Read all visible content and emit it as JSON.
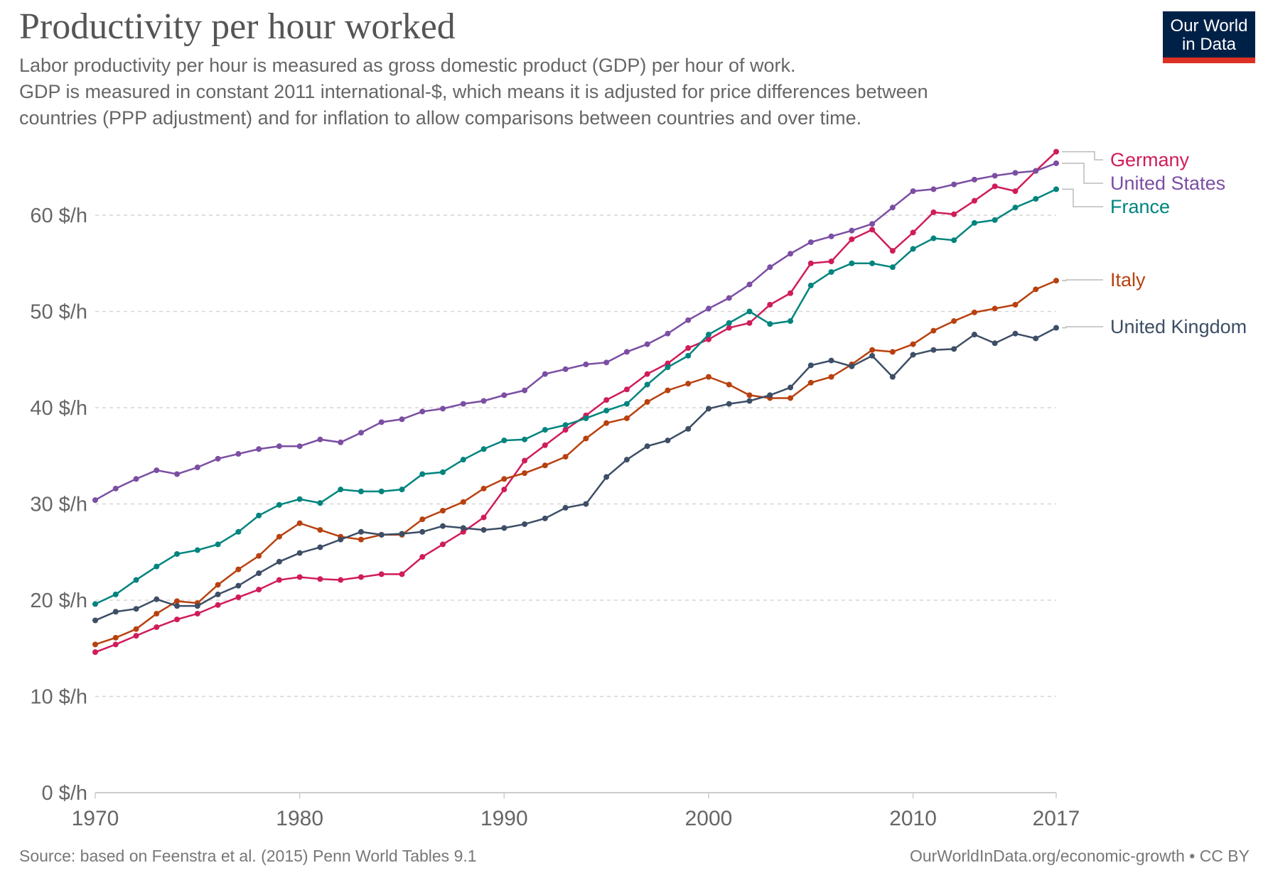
{
  "header": {
    "title": "Productivity per hour worked",
    "subtitle": "Labor productivity per hour is measured as gross domestic product (GDP) per hour of work.\n GDP is measured in constant 2011 international-$, which means it is adjusted for price differences between\ncountries (PPP adjustment) and for inflation to allow comparisons between countries and over time.",
    "logo": "Our World in Data",
    "logo_colors": {
      "background": "#002147",
      "bar": "#dc3022"
    }
  },
  "footer": {
    "source": "Source: based on Feenstra et al. (2015) Penn World Tables 9.1",
    "license": "OurWorldInData.org/economic-growth • CC BY"
  },
  "chart_data": {
    "type": "line",
    "title": "Productivity per hour worked",
    "xlabel": "",
    "ylabel": "",
    "xlim": [
      1970,
      2017
    ],
    "ylim": [
      0,
      66
    ],
    "x_ticks": [
      1970,
      1980,
      1990,
      2000,
      2010,
      2017
    ],
    "y_ticks": [
      0,
      10,
      20,
      30,
      40,
      50,
      60
    ],
    "y_tick_labels": [
      "0 $/h",
      "10 $/h",
      "20 $/h",
      "30 $/h",
      "40 $/h",
      "50 $/h",
      "60 $/h"
    ],
    "grid": "horizontal dashed",
    "legend": "right (inline labels at line ends)",
    "x": [
      1970,
      1971,
      1972,
      1973,
      1974,
      1975,
      1976,
      1977,
      1978,
      1979,
      1980,
      1981,
      1982,
      1983,
      1984,
      1985,
      1986,
      1987,
      1988,
      1989,
      1990,
      1991,
      1992,
      1993,
      1994,
      1995,
      1996,
      1997,
      1998,
      1999,
      2000,
      2001,
      2002,
      2003,
      2004,
      2005,
      2006,
      2007,
      2008,
      2009,
      2010,
      2011,
      2012,
      2013,
      2014,
      2015,
      2016,
      2017
    ],
    "series": [
      {
        "name": "Germany",
        "color": "#d01c5b",
        "values": [
          14.6,
          15.4,
          16.3,
          17.2,
          18.0,
          18.6,
          19.5,
          20.3,
          21.1,
          22.1,
          22.4,
          22.2,
          22.1,
          22.4,
          22.7,
          22.7,
          24.5,
          25.8,
          27.1,
          28.6,
          31.5,
          34.5,
          36.1,
          37.7,
          39.2,
          40.8,
          41.9,
          43.5,
          44.6,
          46.2,
          47.1,
          48.3,
          48.8,
          50.7,
          51.9,
          55.0,
          55.2,
          57.5,
          58.5,
          56.3,
          58.2,
          60.3,
          60.1,
          61.5,
          63.0,
          62.5,
          64.6,
          66.6
        ]
      },
      {
        "name": "United States",
        "color": "#7b4ea3",
        "values": [
          30.4,
          31.6,
          32.6,
          33.5,
          33.1,
          33.8,
          34.7,
          35.2,
          35.7,
          36.0,
          36.0,
          36.7,
          36.4,
          37.4,
          38.5,
          38.8,
          39.6,
          39.9,
          40.4,
          40.7,
          41.3,
          41.8,
          43.5,
          44.0,
          44.5,
          44.7,
          45.8,
          46.6,
          47.7,
          49.1,
          50.3,
          51.4,
          52.8,
          54.6,
          56.0,
          57.2,
          57.8,
          58.4,
          59.1,
          60.8,
          62.5,
          62.7,
          63.2,
          63.7,
          64.1,
          64.4,
          64.6,
          65.4
        ]
      },
      {
        "name": "France",
        "color": "#00847e",
        "values": [
          19.6,
          20.6,
          22.1,
          23.5,
          24.8,
          25.2,
          25.8,
          27.1,
          28.8,
          29.9,
          30.5,
          30.1,
          31.5,
          31.3,
          31.3,
          31.5,
          33.1,
          33.3,
          34.6,
          35.7,
          36.6,
          36.7,
          37.7,
          38.2,
          38.9,
          39.7,
          40.4,
          42.4,
          44.2,
          45.4,
          47.6,
          48.8,
          50.0,
          48.7,
          49.0,
          52.7,
          54.1,
          55.0,
          55.0,
          54.6,
          56.5,
          57.6,
          57.4,
          59.2,
          59.5,
          60.8,
          61.7,
          62.7
        ]
      },
      {
        "name": "Italy",
        "color": "#b8410f",
        "values": [
          15.4,
          16.1,
          17.0,
          18.6,
          19.9,
          19.7,
          21.6,
          23.2,
          24.6,
          26.6,
          28.0,
          27.3,
          26.6,
          26.3,
          26.8,
          26.8,
          28.4,
          29.3,
          30.2,
          31.6,
          32.6,
          33.2,
          34.0,
          34.9,
          36.8,
          38.4,
          38.9,
          40.6,
          41.8,
          42.5,
          43.2,
          42.4,
          41.3,
          41.0,
          41.0,
          42.6,
          43.2,
          44.5,
          46.0,
          45.8,
          46.6,
          48.0,
          49.0,
          49.9,
          50.3,
          50.7,
          52.3,
          53.2
        ]
      },
      {
        "name": "United Kingdom",
        "color": "#3d4e66",
        "values": [
          17.9,
          18.8,
          19.1,
          20.1,
          19.4,
          19.4,
          20.6,
          21.5,
          22.8,
          24.0,
          24.9,
          25.5,
          26.3,
          27.1,
          26.8,
          26.9,
          27.1,
          27.7,
          27.5,
          27.3,
          27.5,
          27.9,
          28.5,
          29.6,
          30.0,
          32.8,
          34.6,
          36.0,
          36.6,
          37.8,
          39.9,
          40.4,
          40.7,
          41.3,
          42.1,
          44.4,
          44.9,
          44.3,
          45.4,
          43.2,
          45.5,
          46.0,
          46.1,
          47.6,
          46.7,
          47.7,
          47.2,
          48.3
        ]
      }
    ]
  }
}
